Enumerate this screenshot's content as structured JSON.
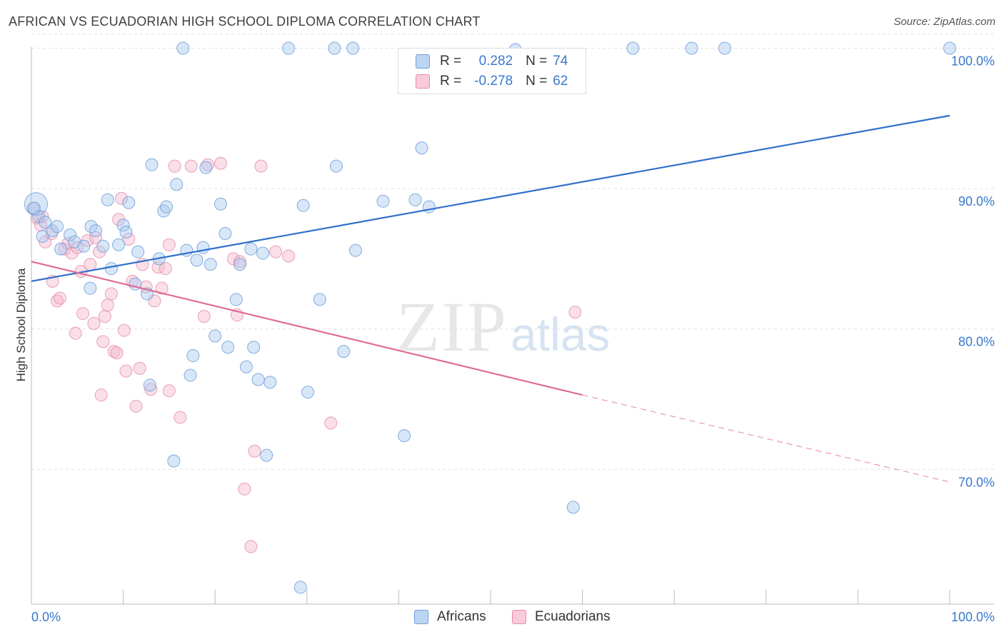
{
  "header": {
    "title": "AFRICAN VS ECUADORIAN HIGH SCHOOL DIPLOMA CORRELATION CHART",
    "source": "Source: ZipAtlas.com"
  },
  "legend": {
    "rows": [
      {
        "r_label": "R =",
        "r_value": "0.282",
        "n_label": "N =",
        "n_value": "74"
      },
      {
        "r_label": "R =",
        "r_value": "-0.278",
        "n_label": "N =",
        "n_value": "62"
      }
    ]
  },
  "bottom_legend": {
    "series1": "Africans",
    "series2": "Ecuadorians"
  },
  "watermark": {
    "zip": "ZIP",
    "atlas": "atlas"
  },
  "colors": {
    "blue_fill": "#a9c9ef",
    "blue_stroke": "#6f9fd8",
    "blue_line": "#2f6fcc",
    "pink_fill": "#f5b8cb",
    "pink_stroke": "#e48aa7",
    "pink_line": "#e06c95",
    "axis_text": "#3a78cc",
    "grid": "#e0e0e0"
  },
  "chart_data": {
    "type": "scatter",
    "title": "AFRICAN VS ECUADORIAN HIGH SCHOOL DIPLOMA CORRELATION CHART",
    "xlabel": "",
    "ylabel": "High School Diploma",
    "xlim": [
      0,
      100
    ],
    "ylim": [
      60.4,
      101.4
    ],
    "x_ticks": [
      0,
      100
    ],
    "x_tick_labels": [
      "0.0%",
      "100.0%"
    ],
    "y_ticks": [
      70,
      80,
      90,
      100
    ],
    "y_tick_labels": [
      "70.0%",
      "80.0%",
      "90.0%",
      "100.0%"
    ],
    "grid": true,
    "legend_position": "top-center",
    "series": [
      {
        "name": "Africans",
        "r": 0.282,
        "n": 74,
        "trend": {
          "x": [
            0,
            100
          ],
          "y": [
            83.4,
            95.2
          ]
        },
        "points": [
          [
            0.5,
            88.9
          ],
          [
            0.8,
            88.0
          ],
          [
            1.5,
            87.6
          ],
          [
            1.2,
            86.6
          ],
          [
            2.3,
            87.0
          ],
          [
            2.8,
            87.3
          ],
          [
            3.2,
            85.7
          ],
          [
            4.2,
            86.7
          ],
          [
            4.7,
            86.2
          ],
          [
            5.7,
            85.9
          ],
          [
            6.5,
            87.3
          ],
          [
            7.0,
            87.0
          ],
          [
            7.8,
            85.9
          ],
          [
            8.3,
            89.2
          ],
          [
            6.4,
            82.9
          ],
          [
            8.7,
            84.3
          ],
          [
            9.5,
            86.0
          ],
          [
            10.0,
            87.4
          ],
          [
            10.3,
            86.9
          ],
          [
            10.6,
            89.0
          ],
          [
            11.6,
            85.5
          ],
          [
            11.3,
            83.2
          ],
          [
            12.6,
            82.5
          ],
          [
            12.9,
            76.0
          ],
          [
            13.1,
            91.7
          ],
          [
            13.9,
            85.0
          ],
          [
            14.4,
            88.4
          ],
          [
            14.7,
            88.7
          ],
          [
            15.5,
            70.6
          ],
          [
            15.8,
            90.3
          ],
          [
            16.5,
            100.0
          ],
          [
            16.9,
            85.6
          ],
          [
            17.3,
            76.7
          ],
          [
            17.6,
            78.1
          ],
          [
            18.0,
            84.9
          ],
          [
            18.7,
            85.8
          ],
          [
            19.0,
            91.5
          ],
          [
            19.5,
            84.6
          ],
          [
            20.0,
            79.5
          ],
          [
            20.6,
            88.9
          ],
          [
            21.1,
            86.8
          ],
          [
            21.4,
            78.7
          ],
          [
            22.3,
            82.1
          ],
          [
            22.7,
            84.6
          ],
          [
            23.4,
            77.3
          ],
          [
            23.9,
            85.7
          ],
          [
            24.2,
            78.7
          ],
          [
            24.7,
            76.4
          ],
          [
            25.2,
            85.4
          ],
          [
            25.6,
            71.0
          ],
          [
            26.0,
            76.2
          ],
          [
            28.0,
            100.0
          ],
          [
            29.3,
            61.6
          ],
          [
            29.6,
            88.8
          ],
          [
            30.1,
            75.5
          ],
          [
            31.4,
            82.1
          ],
          [
            33.0,
            100.0
          ],
          [
            33.2,
            91.6
          ],
          [
            34.0,
            78.4
          ],
          [
            35.0,
            100.0
          ],
          [
            35.3,
            85.6
          ],
          [
            38.3,
            89.1
          ],
          [
            40.6,
            72.4
          ],
          [
            41.8,
            89.2
          ],
          [
            42.5,
            92.9
          ],
          [
            43.3,
            88.7
          ],
          [
            52.7,
            99.9
          ],
          [
            55.3,
            99.0
          ],
          [
            59.0,
            67.3
          ],
          [
            65.5,
            100.0
          ],
          [
            71.9,
            100.0
          ],
          [
            75.5,
            100.0
          ],
          [
            100.0,
            100.0
          ],
          [
            0.3,
            88.6
          ]
        ]
      },
      {
        "name": "Ecuadorians",
        "r": -0.278,
        "n": 62,
        "trend": {
          "x": [
            0,
            60
          ],
          "y": [
            84.8,
            75.3
          ]
        },
        "trend_extension": {
          "x": [
            60,
            100
          ],
          "y": [
            75.3,
            69.1
          ]
        },
        "points": [
          [
            0.2,
            88.6
          ],
          [
            0.6,
            87.9
          ],
          [
            1.0,
            87.4
          ],
          [
            1.5,
            86.2
          ],
          [
            2.2,
            86.8
          ],
          [
            2.3,
            83.4
          ],
          [
            2.8,
            82.0
          ],
          [
            3.1,
            82.2
          ],
          [
            3.6,
            85.7
          ],
          [
            4.0,
            86.1
          ],
          [
            4.4,
            85.4
          ],
          [
            4.8,
            79.7
          ],
          [
            5.0,
            85.8
          ],
          [
            5.4,
            84.1
          ],
          [
            5.6,
            81.1
          ],
          [
            6.1,
            86.3
          ],
          [
            6.4,
            84.6
          ],
          [
            6.8,
            80.4
          ],
          [
            7.0,
            86.5
          ],
          [
            7.4,
            85.5
          ],
          [
            7.6,
            75.3
          ],
          [
            7.8,
            79.1
          ],
          [
            8.0,
            80.9
          ],
          [
            8.3,
            81.7
          ],
          [
            8.7,
            82.5
          ],
          [
            9.0,
            78.4
          ],
          [
            9.3,
            78.3
          ],
          [
            9.5,
            87.8
          ],
          [
            9.8,
            89.3
          ],
          [
            10.1,
            79.9
          ],
          [
            10.3,
            77.0
          ],
          [
            10.6,
            86.4
          ],
          [
            11.0,
            83.4
          ],
          [
            11.4,
            74.5
          ],
          [
            11.8,
            77.2
          ],
          [
            12.1,
            84.6
          ],
          [
            12.5,
            83.0
          ],
          [
            13.0,
            75.7
          ],
          [
            13.4,
            82.0
          ],
          [
            13.8,
            84.4
          ],
          [
            14.2,
            82.9
          ],
          [
            14.6,
            84.3
          ],
          [
            15.0,
            75.6
          ],
          [
            15.6,
            91.6
          ],
          [
            16.2,
            73.7
          ],
          [
            17.4,
            91.6
          ],
          [
            18.8,
            80.9
          ],
          [
            19.2,
            91.7
          ],
          [
            20.6,
            91.8
          ],
          [
            22.0,
            85.0
          ],
          [
            22.4,
            81.0
          ],
          [
            22.7,
            84.8
          ],
          [
            23.2,
            68.6
          ],
          [
            23.9,
            64.5
          ],
          [
            24.3,
            71.3
          ],
          [
            25.0,
            91.6
          ],
          [
            26.6,
            85.5
          ],
          [
            28.0,
            85.2
          ],
          [
            32.6,
            73.3
          ],
          [
            59.2,
            81.2
          ],
          [
            15.0,
            86.0
          ],
          [
            1.2,
            88.0
          ]
        ]
      }
    ]
  }
}
